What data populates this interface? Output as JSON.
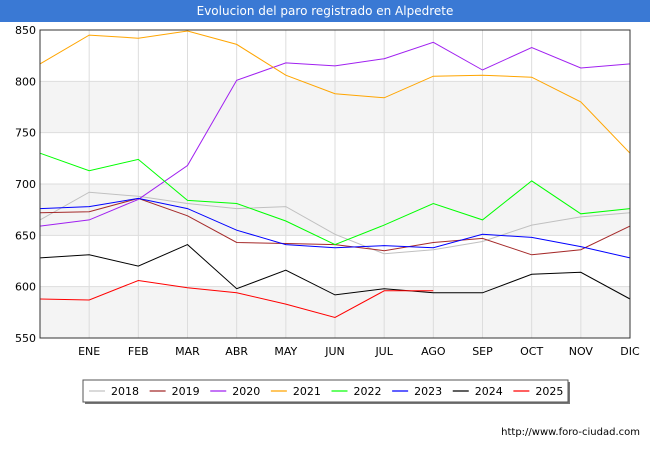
{
  "chart_data": {
    "type": "line",
    "title": "Evolucion del paro registrado en Alpedrete",
    "xlabel": "",
    "ylabel": "",
    "categories": [
      "",
      "ENE",
      "FEB",
      "MAR",
      "ABR",
      "MAY",
      "JUN",
      "JUL",
      "AGO",
      "SEP",
      "OCT",
      "NOV",
      "DIC"
    ],
    "y_ticks": [
      "550",
      "600",
      "650",
      "700",
      "750",
      "800",
      "850"
    ],
    "ylim": [
      550,
      850
    ],
    "grid": true,
    "legend_position": "bottom",
    "series": [
      {
        "name": "2018",
        "color": "#c0c0c0",
        "values": [
          665,
          692,
          688,
          681,
          676,
          678,
          651,
          632,
          636,
          644,
          660,
          668,
          672
        ]
      },
      {
        "name": "2019",
        "color": "#a52a2a",
        "values": [
          672,
          673,
          686,
          669,
          643,
          642,
          641,
          635,
          643,
          647,
          631,
          636,
          659
        ]
      },
      {
        "name": "2020",
        "color": "#a020f0",
        "values": [
          659,
          665,
          685,
          718,
          801,
          818,
          815,
          822,
          838,
          811,
          833,
          813,
          817
        ]
      },
      {
        "name": "2021",
        "color": "#ffa500",
        "values": [
          817,
          845,
          842,
          849,
          836,
          806,
          788,
          784,
          805,
          806,
          804,
          780,
          730
        ]
      },
      {
        "name": "2022",
        "color": "#00ff00",
        "values": [
          730,
          713,
          724,
          684,
          681,
          664,
          641,
          660,
          681,
          665,
          703,
          671,
          676
        ]
      },
      {
        "name": "2023",
        "color": "#0000ff",
        "values": [
          676,
          678,
          686,
          676,
          655,
          641,
          638,
          640,
          638,
          651,
          648,
          639,
          628
        ]
      },
      {
        "name": "2024",
        "color": "#000000",
        "values": [
          628,
          631,
          620,
          641,
          598,
          616,
          592,
          598,
          594,
          594,
          612,
          614,
          588
        ]
      },
      {
        "name": "2025",
        "color": "#ff0000",
        "values": [
          588,
          587,
          606,
          599,
          594,
          583,
          570,
          596,
          596,
          null,
          null,
          null,
          null
        ]
      }
    ]
  },
  "footer": {
    "url": "http://www.foro-ciudad.com"
  }
}
